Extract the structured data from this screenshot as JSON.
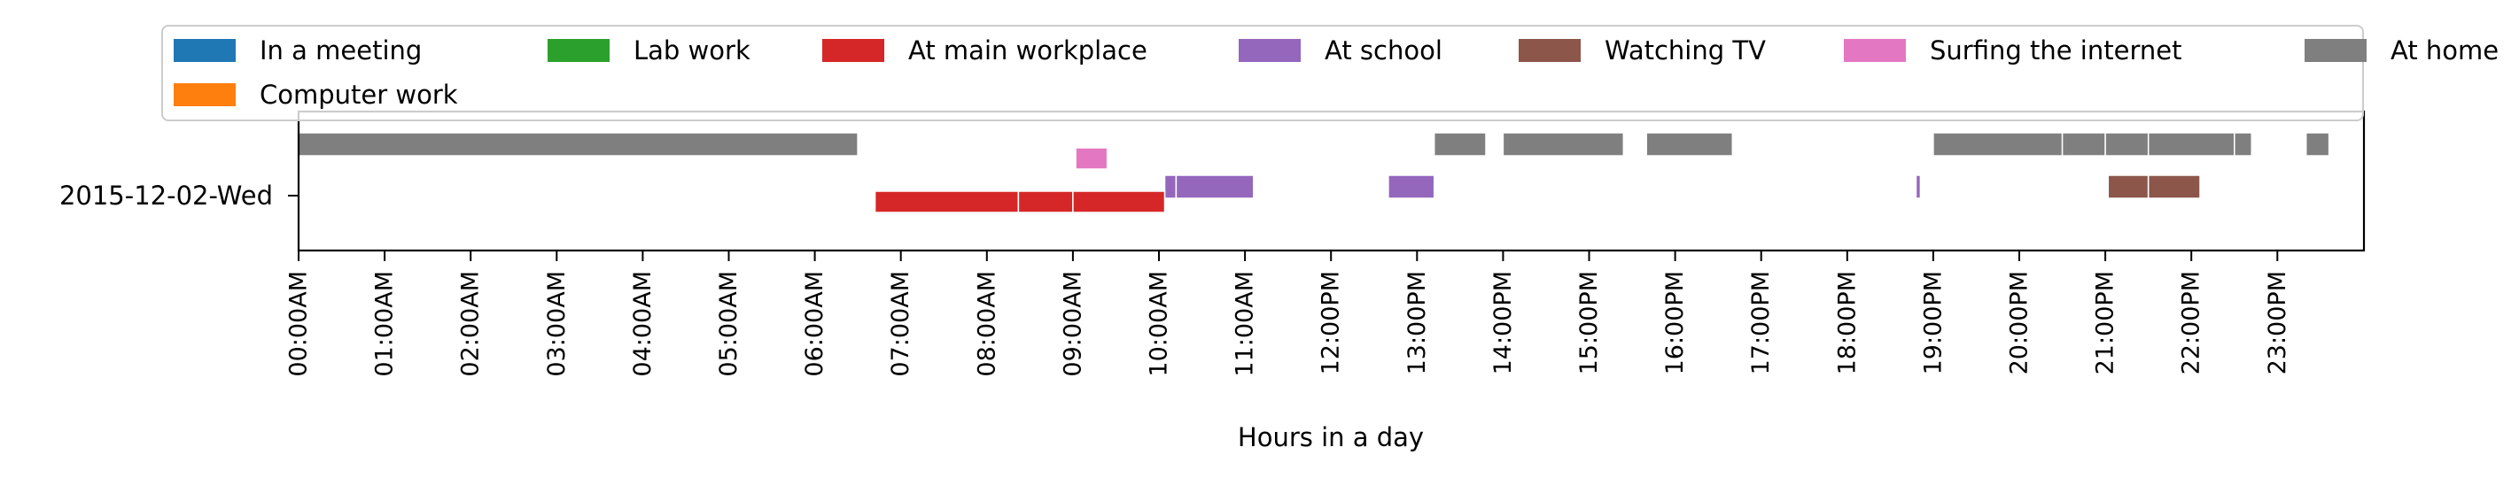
{
  "chart_data": {
    "type": "timeline",
    "xlabel": "Hours in a day",
    "row_label": "2015-12-02-Wed",
    "xlim_hours": [
      0,
      24
    ],
    "x_tick_labels": [
      "00:00AM",
      "01:00AM",
      "02:00AM",
      "03:00AM",
      "04:00AM",
      "05:00AM",
      "06:00AM",
      "07:00AM",
      "08:00AM",
      "09:00AM",
      "10:00AM",
      "11:00AM",
      "12:00PM",
      "13:00PM",
      "14:00PM",
      "15:00PM",
      "16:00PM",
      "17:00PM",
      "18:00PM",
      "19:00PM",
      "20:00PM",
      "21:00PM",
      "22:00PM",
      "23:00PM"
    ],
    "grid": false,
    "legend_position": "top",
    "legend": [
      {
        "label": "In a meeting",
        "color": "#1f77b4"
      },
      {
        "label": "Lab work",
        "color": "#2ca02c"
      },
      {
        "label": "At main workplace",
        "color": "#d62728"
      },
      {
        "label": "At school",
        "color": "#9467bd"
      },
      {
        "label": "Watching TV",
        "color": "#8c564b"
      },
      {
        "label": "Surfing the internet",
        "color": "#e377c2"
      },
      {
        "label": "At home",
        "color": "#7f7f7f"
      },
      {
        "label": "Computer work",
        "color": "#ff7f0e"
      }
    ],
    "series": [
      {
        "name": "At home",
        "lane": 0,
        "color": "#7f7f7f",
        "intervals": [
          [
            "00:00",
            "06:30"
          ],
          [
            "13:12",
            "13:48"
          ],
          [
            "14:00",
            "15:24"
          ],
          [
            "15:40",
            "16:40"
          ],
          [
            "19:00",
            "20:30"
          ],
          [
            "20:30",
            "21:00"
          ],
          [
            "21:00",
            "21:30"
          ],
          [
            "21:30",
            "22:30"
          ],
          [
            "22:30",
            "22:42"
          ],
          [
            "23:20",
            "23:36"
          ]
        ]
      },
      {
        "name": "Surfing the internet",
        "lane": 1,
        "color": "#e377c2",
        "intervals": [
          [
            "09:02",
            "09:24"
          ]
        ]
      },
      {
        "name": "At school",
        "lane": 2,
        "color": "#9467bd",
        "intervals": [
          [
            "10:04",
            "10:12"
          ],
          [
            "10:12",
            "11:06"
          ],
          [
            "12:40",
            "13:12"
          ],
          [
            "18:48",
            "18:51"
          ]
        ]
      },
      {
        "name": "Watching TV",
        "lane": 2,
        "color": "#8c564b",
        "intervals": [
          [
            "21:02",
            "21:30"
          ],
          [
            "21:30",
            "22:06"
          ]
        ]
      },
      {
        "name": "At main workplace",
        "lane": 3,
        "color": "#d62728",
        "intervals": [
          [
            "06:42",
            "08:22"
          ],
          [
            "08:22",
            "09:00"
          ],
          [
            "09:00",
            "10:04"
          ]
        ]
      }
    ]
  }
}
